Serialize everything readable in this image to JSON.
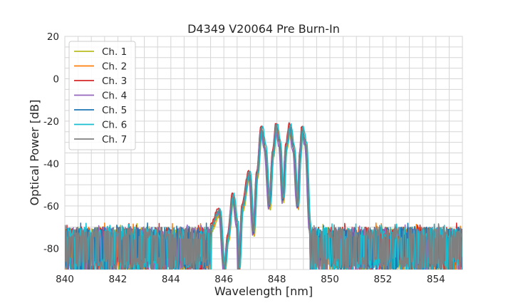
{
  "chart_data": {
    "type": "line",
    "title": "D4349 V20064 Pre Burn-In",
    "xlabel": "Wavelength [nm]",
    "ylabel": "Optical Power [dB]",
    "xlim": [
      840,
      855
    ],
    "ylim": [
      -90,
      20
    ],
    "xticks": [
      840,
      842,
      844,
      846,
      848,
      850,
      852,
      854
    ],
    "yticks": [
      -80,
      -60,
      -40,
      -20,
      0,
      20
    ],
    "grid": true,
    "minor_grid": {
      "x_step": 0.5,
      "y_step": 5
    },
    "legend_position": "top-left",
    "noise_floor": {
      "top_db": -70,
      "bottom_db": -92,
      "signal_start_nm": 845.5,
      "signal_end_nm": 849.25
    },
    "base_spectrum": [
      [
        845.5,
        -70
      ],
      [
        845.83,
        -62
      ],
      [
        846.02,
        -90
      ],
      [
        846.15,
        -75
      ],
      [
        846.34,
        -55
      ],
      [
        846.5,
        -68
      ],
      [
        846.56,
        -90
      ],
      [
        846.7,
        -60
      ],
      [
        846.96,
        -44
      ],
      [
        847.12,
        -72
      ],
      [
        847.25,
        -45
      ],
      [
        847.42,
        -23
      ],
      [
        847.55,
        -32
      ],
      [
        847.72,
        -60
      ],
      [
        847.85,
        -35
      ],
      [
        847.98,
        -22
      ],
      [
        848.1,
        -30
      ],
      [
        848.23,
        -57
      ],
      [
        848.35,
        -32
      ],
      [
        848.49,
        -22
      ],
      [
        848.62,
        -32
      ],
      [
        848.79,
        -60
      ],
      [
        848.88,
        -35
      ],
      [
        848.95,
        -23
      ],
      [
        849.08,
        -30
      ],
      [
        849.25,
        -70
      ]
    ],
    "series": [
      {
        "name": "Ch. 1",
        "color": "#bcbd22",
        "shift_nm": 0.03,
        "offset_db": -2
      },
      {
        "name": "Ch. 2",
        "color": "#ff7f0e",
        "shift_nm": 0.02,
        "offset_db": -1
      },
      {
        "name": "Ch. 3",
        "color": "#d62728",
        "shift_nm": -0.02,
        "offset_db": 1
      },
      {
        "name": "Ch. 4",
        "color": "#9467bd",
        "shift_nm": -0.03,
        "offset_db": -1.5
      },
      {
        "name": "Ch. 5",
        "color": "#1f77b4",
        "shift_nm": 0.0,
        "offset_db": -0.5
      },
      {
        "name": "Ch. 6",
        "color": "#17becf",
        "shift_nm": 0.04,
        "offset_db": 0.5
      },
      {
        "name": "Ch. 7",
        "color": "#7f7f7f",
        "shift_nm": -0.01,
        "offset_db": 0
      }
    ]
  }
}
